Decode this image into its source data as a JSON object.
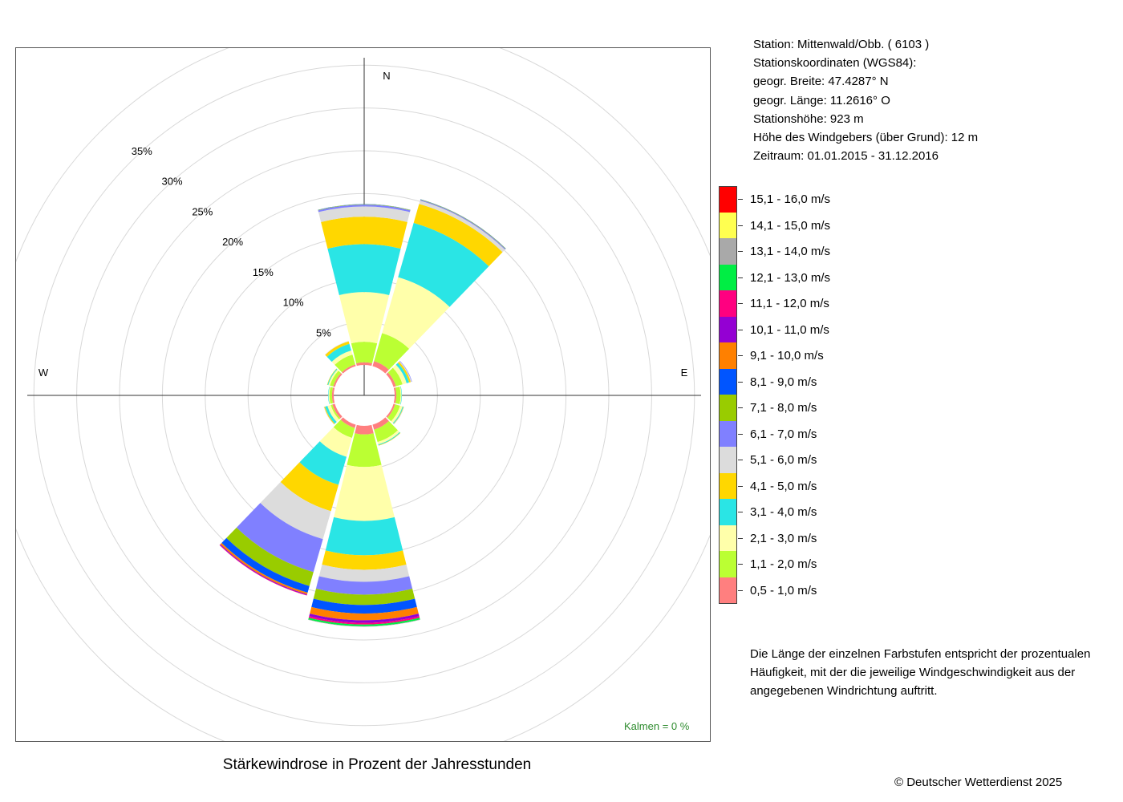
{
  "station_info": {
    "station": "Station:  Mittenwald/Obb.  ( 6103 )",
    "coordinates_heading": "Stationskoordinaten (WGS84):",
    "latitude": "geogr. Breite: 47.4287° N",
    "longitude": "geogr. Länge: 11.2616° O",
    "elevation": "Stationshöhe: 923 m",
    "sensor_height": "Höhe des Windgebers (über Grund): 12 m",
    "period": "Zeitraum: 01.01.2015 - 31.12.2016"
  },
  "legend": {
    "items": [
      {
        "label": "15,1 - 16,0 m/s",
        "color": "#ff0000"
      },
      {
        "label": "14,1 - 15,0 m/s",
        "color": "#ffff50"
      },
      {
        "label": "13,1 - 14,0 m/s",
        "color": "#a9a9a9"
      },
      {
        "label": "12,1 - 13,0 m/s",
        "color": "#00ee44"
      },
      {
        "label": "11,1 - 12,0 m/s",
        "color": "#ff0080"
      },
      {
        "label": "10,1 - 11,0 m/s",
        "color": "#9400d3"
      },
      {
        "label": "9,1 - 10,0 m/s",
        "color": "#ff8000"
      },
      {
        "label": "8,1 - 9,0 m/s",
        "color": "#0055ff"
      },
      {
        "label": "7,1 - 8,0 m/s",
        "color": "#99cc00"
      },
      {
        "label": "6,1 - 7,0 m/s",
        "color": "#8080ff"
      },
      {
        "label": "5,1 - 6,0 m/s",
        "color": "#dcdcdc"
      },
      {
        "label": "4,1 - 5,0 m/s",
        "color": "#ffd700"
      },
      {
        "label": "3,1 - 4,0 m/s",
        "color": "#2ae5e5"
      },
      {
        "label": "2,1 - 3,0 m/s",
        "color": "#ffffaa"
      },
      {
        "label": "1,1 - 2,0 m/s",
        "color": "#bbff33"
      },
      {
        "label": "0,5 - 1,0 m/s",
        "color": "#ff7f7f"
      }
    ]
  },
  "note": "Die Länge der einzelnen Farbstufen entspricht der prozentualen Häufigkeit, mit der die jeweilige Windgeschwindigkeit aus der angegebenen Windrichtung auftritt.",
  "calm": "Kalmen  =  0 %",
  "title": "Stärkewindrose in Prozent der Jahresstunden",
  "copyright": "© Deutscher Wetterdienst  2025",
  "chart_data": {
    "type": "wind-rose",
    "title": "Stärkewindrose in Prozent der Jahresstunden",
    "unit": "%",
    "radial_ticks": [
      "5%",
      "10%",
      "15%",
      "20%",
      "25%",
      "30%",
      "35%"
    ],
    "radial_tick_values": [
      5,
      10,
      15,
      20,
      25,
      30,
      35
    ],
    "direction_labels": [
      "N",
      "E",
      "W"
    ],
    "directions_deg": [
      0,
      30,
      60,
      90,
      120,
      150,
      180,
      210,
      240,
      270,
      300,
      330
    ],
    "speed_classes": [
      "0,5 - 1,0 m/s",
      "1,1 - 2,0 m/s",
      "2,1 - 3,0 m/s",
      "3,1 - 4,0 m/s",
      "4,1 - 5,0 m/s",
      "5,1 - 6,0 m/s",
      "6,1 - 7,0 m/s",
      "7,1 - 8,0 m/s",
      "8,1 - 9,0 m/s",
      "9,1 - 10,0 m/s",
      "10,1 - 11,0 m/s",
      "11,1 - 12,0 m/s",
      "12,1 - 13,0 m/s",
      "13,1 - 14,0 m/s",
      "14,1 - 15,0 m/s",
      "15,1 - 16,0 m/s"
    ],
    "colors": [
      "#ff7f7f",
      "#bbff33",
      "#ffffaa",
      "#2ae5e5",
      "#ffd700",
      "#dcdcdc",
      "#8080ff",
      "#99cc00",
      "#0055ff",
      "#ff8000",
      "#9400d3",
      "#ff0080",
      "#00ee44",
      "#a9a9a9",
      "#ffff50",
      "#ff0000"
    ],
    "series": [
      {
        "direction": 0,
        "values": [
          0.3,
          2.4,
          5.8,
          5.6,
          3.2,
          1.2,
          0.2,
          0.05,
          0.02,
          0,
          0,
          0,
          0,
          0,
          0,
          0
        ]
      },
      {
        "direction": 30,
        "values": [
          0.6,
          3.4,
          6.8,
          6.6,
          2.3,
          0.4,
          0.1,
          0.05,
          0.02,
          0,
          0,
          0,
          0,
          0,
          0,
          0
        ]
      },
      {
        "direction": 60,
        "values": [
          0.3,
          0.8,
          0.5,
          0.3,
          0.2,
          0.1,
          0.05,
          0,
          0,
          0,
          0,
          0,
          0,
          0,
          0,
          0
        ]
      },
      {
        "direction": 90,
        "values": [
          0.2,
          0.5,
          0.1,
          0.05,
          0,
          0,
          0,
          0,
          0,
          0,
          0,
          0,
          0,
          0,
          0,
          0
        ]
      },
      {
        "direction": 120,
        "values": [
          0.2,
          0.6,
          0.3,
          0.1,
          0.05,
          0.05,
          0,
          0,
          0,
          0,
          0,
          0,
          0,
          0,
          0,
          0
        ]
      },
      {
        "direction": 150,
        "values": [
          0.6,
          1.5,
          0.3,
          0.1,
          0.05,
          0,
          0,
          0,
          0,
          0,
          0,
          0,
          0,
          0,
          0,
          0
        ]
      },
      {
        "direction": 180,
        "values": [
          1.0,
          3.8,
          6.3,
          4.0,
          1.7,
          1.4,
          1.5,
          1.2,
          1.0,
          0.8,
          0.3,
          0.2,
          0.2,
          0.05,
          0,
          0
        ]
      },
      {
        "direction": 210,
        "values": [
          0.4,
          1.2,
          2.3,
          3.4,
          3.2,
          3.4,
          4.0,
          1.7,
          0.8,
          0.2,
          0.1,
          0.05,
          0,
          0,
          0,
          0
        ]
      },
      {
        "direction": 240,
        "values": [
          0.3,
          0.2,
          0.4,
          0.3,
          0.1,
          0.05,
          0,
          0,
          0,
          0,
          0,
          0,
          0,
          0,
          0,
          0
        ]
      },
      {
        "direction": 270,
        "values": [
          0.2,
          0.3,
          0.1,
          0.05,
          0,
          0,
          0,
          0,
          0,
          0,
          0,
          0,
          0,
          0,
          0,
          0
        ]
      },
      {
        "direction": 300,
        "values": [
          0.2,
          0.4,
          0.2,
          0.1,
          0.05,
          0,
          0,
          0,
          0,
          0,
          0,
          0,
          0,
          0,
          0,
          0
        ]
      },
      {
        "direction": 330,
        "values": [
          0.2,
          1.2,
          0.5,
          0.8,
          0.3,
          0.05,
          0,
          0,
          0,
          0,
          0,
          0,
          0,
          0,
          0,
          0
        ]
      }
    ]
  }
}
